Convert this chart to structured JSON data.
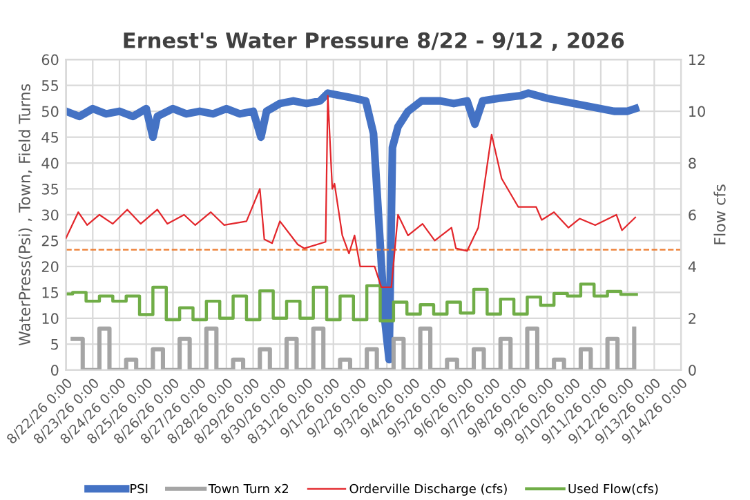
{
  "chart_data": {
    "type": "line",
    "title": "Ernest's Water Pressure 8/22 - 9/12 , 2026",
    "ylabel": "WaterPress(Psi) , Town, Field Turns",
    "y2label": "Flow cfs",
    "xlim": [
      "2026-08-22",
      "2026-09-14"
    ],
    "xticks": [
      {
        "value": "2026-08-22",
        "label": "8/22/26 0:00"
      },
      {
        "value": "2026-08-23",
        "label": "8/23/26 0:00"
      },
      {
        "value": "2026-08-24",
        "label": "8/24/26 0:00"
      },
      {
        "value": "2026-08-25",
        "label": "8/25/26 0:00"
      },
      {
        "value": "2026-08-26",
        "label": "8/26/26 0:00"
      },
      {
        "value": "2026-08-27",
        "label": "8/27/26 0:00"
      },
      {
        "value": "2026-08-28",
        "label": "8/28/26 0:00"
      },
      {
        "value": "2026-08-29",
        "label": "8/29/26 0:00"
      },
      {
        "value": "2026-08-30",
        "label": "8/30/26 0:00"
      },
      {
        "value": "2026-08-31",
        "label": "8/31/26 0:00"
      },
      {
        "value": "2026-09-01",
        "label": "9/1/26 0:00"
      },
      {
        "value": "2026-09-02",
        "label": "9/2/26 0:00"
      },
      {
        "value": "2026-09-03",
        "label": "9/3/26 0:00"
      },
      {
        "value": "2026-09-04",
        "label": "9/4/26 0:00"
      },
      {
        "value": "2026-09-05",
        "label": "9/5/26 0:00"
      },
      {
        "value": "2026-09-06",
        "label": "9/6/26 0:00"
      },
      {
        "value": "2026-09-07",
        "label": "9/7/26 0:00"
      },
      {
        "value": "2026-09-08",
        "label": "9/8/26 0:00"
      },
      {
        "value": "2026-09-09",
        "label": "9/9/26 0:00"
      },
      {
        "value": "2026-09-10",
        "label": "9/10/26 0:00"
      },
      {
        "value": "2026-09-11",
        "label": "9/11/26 0:00"
      },
      {
        "value": "2026-09-12",
        "label": "9/12/26 0:00"
      },
      {
        "value": "2026-09-13",
        "label": "9/13/26 0:00"
      },
      {
        "value": "2026-09-14",
        "label": "9/14/26 0:00"
      }
    ],
    "ylim": [
      0,
      60
    ],
    "yticks": [
      0,
      5,
      10,
      15,
      20,
      25,
      30,
      35,
      40,
      45,
      50,
      55,
      60
    ],
    "y2lim": [
      0,
      12
    ],
    "y2ticks": [
      0,
      2,
      4,
      6,
      8,
      10,
      12
    ],
    "grid": true,
    "legend": "bottom",
    "marker": "none",
    "ref_lines": [
      {
        "axis": "y2",
        "value": 4.65,
        "color": "#ed7d31",
        "line_style": "dashed"
      }
    ],
    "series": [
      {
        "name": "PSI",
        "color": "#4472c4",
        "x": [
          "2026-08-22T00:00",
          "2026-08-22T12:00",
          "2026-08-23T00:00",
          "2026-08-23T12:00",
          "2026-08-24T00:00",
          "2026-08-24T12:00",
          "2026-08-25T00:00",
          "2026-08-25T06:00",
          "2026-08-25T10:00",
          "2026-08-26T00:00",
          "2026-08-26T12:00",
          "2026-08-27T00:00",
          "2026-08-27T12:00",
          "2026-08-28T00:00",
          "2026-08-28T12:00",
          "2026-08-29T00:00",
          "2026-08-29T07:00",
          "2026-08-29T12:00",
          "2026-08-30T00:00",
          "2026-08-30T12:00",
          "2026-08-31T00:00",
          "2026-08-31T12:00",
          "2026-08-31T19:00",
          "2026-09-01T07:00",
          "2026-09-01T19:00",
          "2026-09-02T05:00",
          "2026-09-02T12:00",
          "2026-09-02T17:00",
          "2026-09-02T22:00",
          "2026-09-03T02:00",
          "2026-09-03T05:00",
          "2026-09-03T10:00",
          "2026-09-03T19:00",
          "2026-09-04T07:00",
          "2026-09-05T00:00",
          "2026-09-05T12:00",
          "2026-09-06T00:00",
          "2026-09-06T07:00",
          "2026-09-06T14:00",
          "2026-09-07T05:00",
          "2026-09-08T00:00",
          "2026-09-08T07:00",
          "2026-09-09T00:00",
          "2026-09-09T12:00",
          "2026-09-10T00:00",
          "2026-09-10T12:00",
          "2026-09-11T00:00",
          "2026-09-11T12:00",
          "2026-09-12T00:00",
          "2026-09-12T07:00"
        ],
        "values": [
          50,
          49,
          50.5,
          49.5,
          50,
          49,
          50.5,
          45,
          49,
          50.5,
          49.5,
          50,
          49.5,
          50.5,
          49.5,
          50,
          45,
          50,
          51.5,
          52,
          51.5,
          52,
          53.5,
          53,
          52.5,
          52,
          45.7,
          28,
          10,
          2,
          43,
          47,
          50,
          52,
          52,
          51.5,
          52,
          47.5,
          52,
          52.5,
          53,
          53.5,
          52.5,
          52,
          51.5,
          51,
          50.5,
          50,
          50,
          50.5
        ]
      },
      {
        "name": "Town Turn x2",
        "type": "step",
        "color": "#a5a5a5",
        "x": [
          "2026-08-22T06:00",
          "2026-08-22T15:00",
          "2026-08-23T06:00",
          "2026-08-23T15:00",
          "2026-08-24T06:00",
          "2026-08-24T15:00",
          "2026-08-25T06:00",
          "2026-08-25T15:00",
          "2026-08-26T06:00",
          "2026-08-26T15:00",
          "2026-08-27T06:00",
          "2026-08-27T15:00",
          "2026-08-28T06:00",
          "2026-08-28T15:00",
          "2026-08-29T06:00",
          "2026-08-29T15:00",
          "2026-08-30T06:00",
          "2026-08-30T15:00",
          "2026-08-31T06:00",
          "2026-08-31T15:00",
          "2026-09-01T06:00",
          "2026-09-01T15:00",
          "2026-09-02T06:00",
          "2026-09-02T15:00",
          "2026-09-03T06:00",
          "2026-09-03T15:00",
          "2026-09-04T06:00",
          "2026-09-04T15:00",
          "2026-09-05T06:00",
          "2026-09-05T15:00",
          "2026-09-06T06:00",
          "2026-09-06T15:00",
          "2026-09-07T06:00",
          "2026-09-07T15:00",
          "2026-09-08T06:00",
          "2026-09-08T15:00",
          "2026-09-09T06:00",
          "2026-09-09T15:00",
          "2026-09-10T06:00",
          "2026-09-10T15:00",
          "2026-09-11T06:00",
          "2026-09-11T15:00",
          "2026-09-12T06:00"
        ],
        "values": [
          6,
          0,
          8,
          0,
          2,
          0,
          4,
          0,
          6,
          0,
          8,
          0,
          2,
          0,
          4,
          0,
          6,
          0,
          8,
          0,
          2,
          0,
          4,
          0,
          6,
          0,
          8,
          0,
          2,
          0,
          4,
          0,
          6,
          0,
          8,
          0,
          2,
          0,
          4,
          0,
          6,
          0,
          8
        ]
      },
      {
        "name": "Orderville Discharge (cfs)",
        "axis": "y2",
        "color": "#e3262b",
        "x": [
          "2026-08-22T00:00",
          "2026-08-22T11:00",
          "2026-08-22T19:00",
          "2026-08-23T06:00",
          "2026-08-23T18:00",
          "2026-08-24T07:00",
          "2026-08-24T19:00",
          "2026-08-25T10:00",
          "2026-08-25T19:00",
          "2026-08-26T10:00",
          "2026-08-26T20:00",
          "2026-08-27T10:00",
          "2026-08-27T22:00",
          "2026-08-28T18:00",
          "2026-08-29T06:00",
          "2026-08-29T10:00",
          "2026-08-29T17:00",
          "2026-08-30T00:00",
          "2026-08-30T16:00",
          "2026-08-30T22:00",
          "2026-08-31T17:00",
          "2026-08-31T19:00",
          "2026-08-31T23:00",
          "2026-09-01T01:00",
          "2026-09-01T08:00",
          "2026-09-01T14:00",
          "2026-09-01T19:00",
          "2026-09-02T00:00",
          "2026-09-02T13:00",
          "2026-09-02T19:00",
          "2026-09-03T04:00",
          "2026-09-03T10:00",
          "2026-09-03T19:00",
          "2026-09-04T08:00",
          "2026-09-04T19:00",
          "2026-09-05T10:00",
          "2026-09-05T14:00",
          "2026-09-06T00:00",
          "2026-09-06T10:00",
          "2026-09-06T22:00",
          "2026-09-07T07:00",
          "2026-09-07T22:00",
          "2026-09-08T14:00",
          "2026-09-08T19:00",
          "2026-09-09T06:00",
          "2026-09-09T19:00",
          "2026-09-10T05:00",
          "2026-09-10T19:00",
          "2026-09-11T14:00",
          "2026-09-11T19:00",
          "2026-09-12T07:00"
        ],
        "values": [
          5.1,
          6.1,
          5.6,
          6.0,
          5.65,
          6.2,
          5.65,
          6.2,
          5.65,
          6.0,
          5.6,
          6.1,
          5.6,
          5.75,
          7.0,
          5.05,
          4.9,
          5.75,
          4.85,
          4.7,
          4.95,
          10.6,
          7.0,
          7.2,
          5.2,
          4.5,
          5.2,
          4.0,
          4.0,
          3.2,
          3.2,
          6.0,
          5.2,
          5.65,
          5.0,
          5.5,
          4.7,
          4.6,
          5.5,
          9.1,
          7.4,
          6.3,
          6.3,
          5.8,
          6.1,
          5.5,
          5.85,
          5.6,
          6.0,
          5.4,
          5.9
        ]
      },
      {
        "name": "Used Flow(cfs)",
        "type": "step",
        "color": "#70ad47",
        "x": [
          "2026-08-22T00:00",
          "2026-08-22T06:00",
          "2026-08-22T18:00",
          "2026-08-23T06:00",
          "2026-08-23T18:00",
          "2026-08-24T06:00",
          "2026-08-24T18:00",
          "2026-08-25T06:00",
          "2026-08-25T18:00",
          "2026-08-26T06:00",
          "2026-08-26T18:00",
          "2026-08-27T06:00",
          "2026-08-27T18:00",
          "2026-08-28T06:00",
          "2026-08-28T18:00",
          "2026-08-29T06:00",
          "2026-08-29T18:00",
          "2026-08-30T06:00",
          "2026-08-30T18:00",
          "2026-08-31T06:00",
          "2026-08-31T18:00",
          "2026-09-01T06:00",
          "2026-09-01T18:00",
          "2026-09-02T06:00",
          "2026-09-02T18:00",
          "2026-09-03T06:00",
          "2026-09-03T18:00",
          "2026-09-04T06:00",
          "2026-09-04T18:00",
          "2026-09-05T06:00",
          "2026-09-05T18:00",
          "2026-09-06T06:00",
          "2026-09-06T18:00",
          "2026-09-07T06:00",
          "2026-09-07T18:00",
          "2026-09-08T06:00",
          "2026-09-08T18:00",
          "2026-09-09T06:00",
          "2026-09-09T18:00",
          "2026-09-10T06:00",
          "2026-09-10T18:00",
          "2026-09-11T06:00",
          "2026-09-11T18:00",
          "2026-09-12T08:00"
        ],
        "values": [
          14.7,
          15.0,
          13.3,
          14.3,
          13.3,
          14.3,
          10.7,
          16.0,
          9.7,
          12.0,
          9.7,
          13.3,
          10.0,
          14.3,
          9.7,
          15.3,
          10.0,
          13.3,
          10.0,
          16.0,
          9.7,
          14.3,
          9.7,
          16.3,
          9.5,
          13.1,
          10.8,
          12.6,
          10.8,
          13.1,
          11.0,
          15.6,
          10.8,
          13.7,
          10.8,
          14.1,
          12.5,
          14.8,
          14.3,
          16.6,
          14.3,
          15.2,
          14.6,
          14.6
        ]
      }
    ]
  }
}
